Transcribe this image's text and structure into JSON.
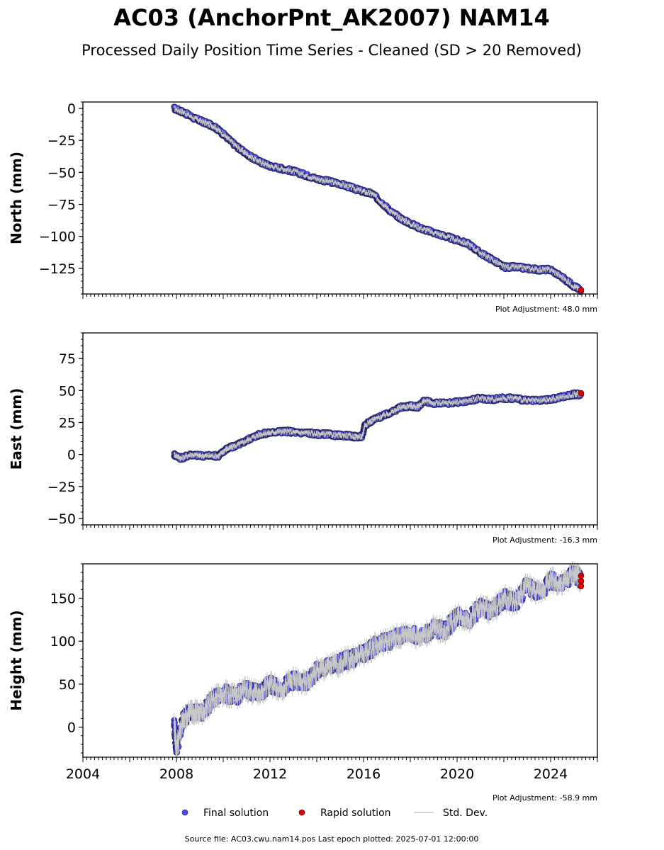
{
  "header": {
    "title": "AC03 (AnchorPnt_AK2007) NAM14",
    "subtitle": "Processed Daily Position Time Series - Cleaned (SD > 20 Removed)"
  },
  "footer": {
    "source": "Source file: AC03.cwu.nam14.pos  Last epoch plotted: 2025-07-01 12:00:00"
  },
  "legend": {
    "final": "Final solution",
    "rapid": "Rapid solution",
    "std": "Std. Dev.",
    "placement": "bottom-center"
  },
  "colors": {
    "final": "#4a4ae6",
    "final_edge": "#1a1a40",
    "rapid": "#e00000",
    "std": "#c8c8c8"
  },
  "chart_data": [
    {
      "type": "scatter",
      "ylabel": "North (mm)",
      "ylim": [
        -145,
        5
      ],
      "yticks": [
        0,
        -25,
        -50,
        -75,
        -100,
        -125
      ],
      "xlim": [
        2004,
        2026
      ],
      "adjustment": "Plot Adjustment: 48.0 mm",
      "final_series": {
        "name": "Final solution",
        "x": [
          2007.9,
          2008.3,
          2008.8,
          2009.2,
          2009.6,
          2010.0,
          2010.4,
          2010.8,
          2011.2,
          2011.6,
          2012.0,
          2012.5,
          2013.0,
          2013.5,
          2014.0,
          2014.5,
          2015.0,
          2015.5,
          2016.0,
          2016.4,
          2016.8,
          2017.2,
          2017.6,
          2018.0,
          2018.5,
          2019.0,
          2019.5,
          2020.0,
          2020.5,
          2021.0,
          2021.5,
          2022.0,
          2022.5,
          2023.0,
          2023.5,
          2024.0,
          2024.5,
          2025.0,
          2025.3
        ],
        "y": [
          0,
          -3,
          -8,
          -11,
          -14,
          -20,
          -27,
          -33,
          -38,
          -42,
          -45,
          -47,
          -49,
          -52,
          -55,
          -57,
          -59,
          -62,
          -65,
          -67,
          -74,
          -81,
          -86,
          -90,
          -94,
          -97,
          -100,
          -103,
          -106,
          -113,
          -118,
          -124,
          -124,
          -125,
          -126,
          -126,
          -132,
          -139,
          -142
        ]
      },
      "rapid_series": {
        "name": "Rapid solution",
        "x": [
          2025.3
        ],
        "y": [
          -142
        ]
      }
    },
    {
      "type": "scatter",
      "ylabel": "East (mm)",
      "ylim": [
        -55,
        95
      ],
      "yticks": [
        75,
        50,
        25,
        0,
        -25,
        -50
      ],
      "xlim": [
        2004,
        2026
      ],
      "adjustment": "Plot Adjustment: -16.3 mm",
      "final_series": {
        "name": "Final solution",
        "x": [
          2007.9,
          2008.2,
          2008.6,
          2009.0,
          2009.4,
          2009.8,
          2010.1,
          2010.4,
          2010.8,
          2011.2,
          2011.6,
          2012.0,
          2012.4,
          2012.8,
          2013.2,
          2013.6,
          2014.0,
          2014.4,
          2014.8,
          2015.2,
          2015.6,
          2015.95,
          2016.05,
          2016.4,
          2016.8,
          2017.2,
          2017.6,
          2018.0,
          2018.3,
          2018.6,
          2019.0,
          2019.5,
          2020.0,
          2020.5,
          2021.0,
          2021.5,
          2022.0,
          2022.5,
          2023.0,
          2023.5,
          2024.0,
          2024.5,
          2025.0,
          2025.3
        ],
        "y": [
          0,
          -3,
          0,
          -1,
          -1,
          -1,
          4,
          6,
          9,
          13,
          16,
          17,
          18,
          18,
          17,
          17,
          16,
          16,
          15,
          15,
          14,
          14,
          23,
          27,
          30,
          33,
          37,
          38,
          37,
          42,
          40,
          40,
          41,
          42,
          44,
          43,
          44,
          44,
          42,
          42,
          43,
          45,
          47,
          47
        ]
      },
      "rapid_series": {
        "name": "Rapid solution",
        "x": [
          2025.3
        ],
        "y": [
          48
        ]
      }
    },
    {
      "type": "scatter",
      "ylabel": "Height (mm)",
      "ylim": [
        -35,
        190
      ],
      "yticks": [
        150,
        100,
        50,
        0
      ],
      "xlim": [
        2004,
        2026
      ],
      "xticks": [
        2004,
        2008,
        2012,
        2016,
        2020,
        2024
      ],
      "adjustment": "Plot Adjustment: -58.9 mm",
      "final_series": {
        "name": "Final solution",
        "x": [
          2007.9,
          2008.0,
          2008.3,
          2008.7,
          2009.0,
          2009.5,
          2010.0,
          2010.5,
          2011.0,
          2011.5,
          2012.0,
          2012.5,
          2013.0,
          2013.5,
          2014.0,
          2014.5,
          2015.0,
          2015.5,
          2016.0,
          2016.5,
          2017.0,
          2017.5,
          2018.0,
          2018.5,
          2019.0,
          2019.5,
          2020.0,
          2020.5,
          2021.0,
          2021.5,
          2022.0,
          2022.5,
          2023.0,
          2023.5,
          2024.0,
          2024.5,
          2025.0,
          2025.3
        ],
        "y": [
          5,
          -25,
          10,
          20,
          15,
          30,
          40,
          35,
          45,
          38,
          50,
          45,
          55,
          50,
          65,
          70,
          75,
          80,
          85,
          95,
          100,
          105,
          110,
          105,
          115,
          112,
          130,
          125,
          140,
          135,
          150,
          145,
          165,
          155,
          172,
          165,
          180,
          170
        ]
      },
      "rapid_series": {
        "name": "Rapid solution",
        "x": [
          2025.3
        ],
        "y": [
          170
        ]
      }
    }
  ]
}
